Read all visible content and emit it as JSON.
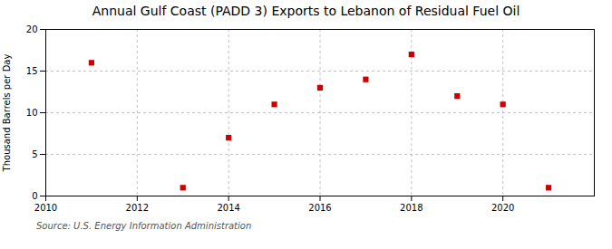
{
  "chart_data": {
    "type": "scatter",
    "title": "Annual Gulf Coast (PADD 3) Exports to Lebanon of Residual Fuel Oil",
    "ylabel": "Thousand Barrels per Day",
    "source": "Source: U.S. Energy Information Administration",
    "x": [
      2011,
      2013,
      2014,
      2015,
      2016,
      2017,
      2018,
      2019,
      2020,
      2021
    ],
    "values": [
      16,
      1,
      7,
      11,
      13,
      14,
      17,
      12,
      11,
      1
    ],
    "color": "#cc0000",
    "marker": "square",
    "xlim": [
      2010,
      2022
    ],
    "xticks": [
      2010,
      2012,
      2014,
      2016,
      2018,
      2020
    ],
    "ylim": [
      0,
      20
    ],
    "yticks": [
      0,
      5,
      10,
      15,
      20
    ],
    "grid": true
  }
}
